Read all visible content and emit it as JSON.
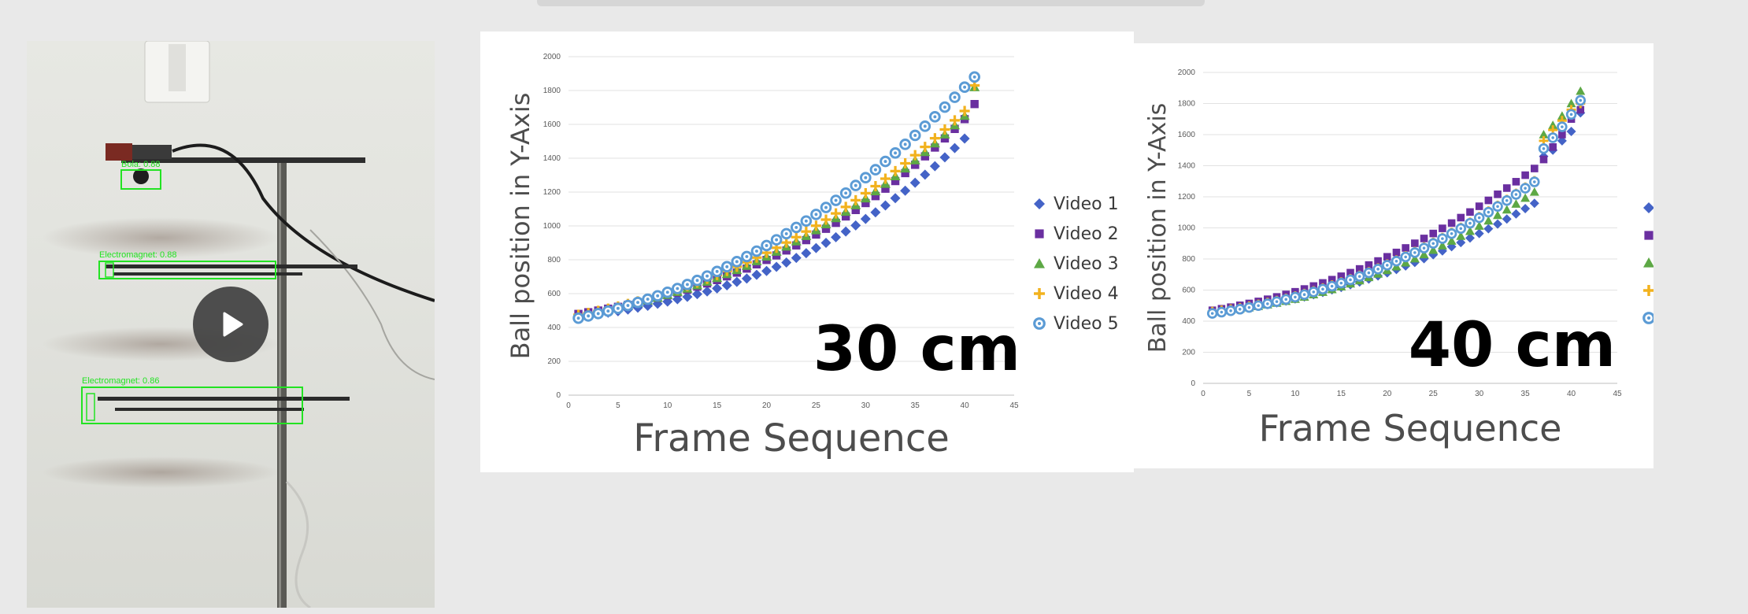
{
  "video": {
    "detections": [
      "Bola: 0.88",
      "Electromagnet: 0.88",
      "Electromagnet: 0.86"
    ],
    "colors": {
      "box": "#22e322",
      "play_bg": "#404040"
    }
  },
  "legend_entries": [
    "Video 1",
    "Video 2",
    "Video 3",
    "Video 4",
    "Video 5"
  ],
  "colors": {
    "video1": "#4463c7",
    "video2": "#6a2fa0",
    "video3": "#5da845",
    "video4": "#f2b21e",
    "video5": "#5b9bd5"
  },
  "chart_data": [
    {
      "type": "scatter",
      "label": "30 cm",
      "xlabel": "Frame Sequence",
      "ylabel": "Ball position in Y-Axis",
      "xlim": [
        0,
        45
      ],
      "ylim": [
        0,
        2000
      ],
      "xticks": [
        0,
        5,
        10,
        15,
        20,
        25,
        30,
        35,
        40,
        45
      ],
      "yticks": [
        0,
        200,
        400,
        600,
        800,
        1000,
        1200,
        1400,
        1600,
        1800,
        2000
      ],
      "grid": "horizontal",
      "legend": "right",
      "series": [
        {
          "name": "Video 1",
          "marker": "diamond",
          "x": [
            1,
            2,
            3,
            4,
            5,
            6,
            7,
            8,
            9,
            10,
            11,
            12,
            13,
            14,
            15,
            16,
            17,
            18,
            19,
            20,
            21,
            22,
            23,
            24,
            25,
            26,
            27,
            28,
            29,
            30,
            31,
            32,
            33,
            34,
            35,
            36,
            37,
            38,
            39,
            40
          ],
          "y": [
            460,
            470,
            478,
            487,
            496,
            506,
            517,
            528,
            540,
            553,
            567,
            581,
            597,
            613,
            631,
            649,
            669,
            689,
            711,
            734,
            758,
            784,
            811,
            839,
            869,
            900,
            933,
            967,
            1003,
            1041,
            1080,
            1121,
            1164,
            1208,
            1255,
            1303,
            1353,
            1405,
            1460,
            1516
          ]
        },
        {
          "name": "Video 2",
          "marker": "square",
          "x": [
            1,
            2,
            3,
            4,
            5,
            6,
            7,
            8,
            9,
            10,
            11,
            12,
            13,
            14,
            15,
            16,
            17,
            18,
            19,
            20,
            21,
            22,
            23,
            24,
            25,
            26,
            27,
            28,
            29,
            30,
            31,
            32,
            33,
            34,
            35,
            36,
            37,
            38,
            39,
            40,
            41
          ],
          "y": [
            480,
            490,
            500,
            511,
            522,
            534,
            547,
            560,
            575,
            590,
            606,
            623,
            641,
            660,
            680,
            702,
            724,
            748,
            773,
            799,
            826,
            855,
            885,
            916,
            949,
            983,
            1018,
            1056,
            1094,
            1135,
            1176,
            1220,
            1265,
            1312,
            1361,
            1411,
            1463,
            1517,
            1573,
            1631,
            1720
          ]
        },
        {
          "name": "Video 3",
          "marker": "triangle",
          "x": [
            1,
            2,
            3,
            4,
            5,
            6,
            7,
            8,
            9,
            10,
            11,
            12,
            13,
            14,
            15,
            16,
            17,
            18,
            19,
            20,
            21,
            22,
            23,
            24,
            25,
            26,
            27,
            28,
            29,
            30,
            31,
            32,
            33,
            34,
            35,
            36,
            37,
            38,
            39,
            40,
            41
          ],
          "y": [
            470,
            481,
            492,
            504,
            517,
            531,
            545,
            560,
            576,
            593,
            611,
            630,
            650,
            671,
            693,
            716,
            740,
            765,
            792,
            819,
            848,
            878,
            909,
            941,
            975,
            1010,
            1046,
            1084,
            1123,
            1163,
            1205,
            1249,
            1294,
            1340,
            1388,
            1437,
            1488,
            1541,
            1595,
            1651,
            1820
          ]
        },
        {
          "name": "Video 4",
          "marker": "plus",
          "x": [
            1,
            2,
            3,
            4,
            5,
            6,
            7,
            8,
            9,
            10,
            11,
            12,
            13,
            14,
            15,
            16,
            17,
            18,
            19,
            20,
            21,
            22,
            23,
            24,
            25,
            26,
            27,
            28,
            29,
            30,
            31,
            32,
            33,
            34,
            35,
            36,
            37,
            38,
            39,
            40,
            41
          ],
          "y": [
            475,
            486,
            498,
            511,
            524,
            539,
            554,
            570,
            587,
            605,
            624,
            644,
            665,
            687,
            710,
            734,
            759,
            785,
            813,
            841,
            871,
            902,
            934,
            967,
            1001,
            1037,
            1074,
            1112,
            1152,
            1193,
            1235,
            1279,
            1324,
            1370,
            1418,
            1467,
            1518,
            1570,
            1624,
            1679,
            1830
          ]
        },
        {
          "name": "Video 5",
          "marker": "circle",
          "x": [
            1,
            2,
            3,
            4,
            5,
            6,
            7,
            8,
            9,
            10,
            11,
            12,
            13,
            14,
            15,
            16,
            17,
            18,
            19,
            20,
            21,
            22,
            23,
            24,
            25,
            26,
            27,
            28,
            29,
            30,
            31,
            32,
            33,
            34,
            35,
            36,
            37,
            38,
            39,
            40,
            41
          ],
          "y": [
            455,
            468,
            482,
            497,
            513,
            530,
            548,
            567,
            587,
            608,
            630,
            654,
            678,
            704,
            731,
            759,
            789,
            819,
            851,
            884,
            918,
            954,
            991,
            1029,
            1068,
            1109,
            1151,
            1194,
            1239,
            1285,
            1332,
            1381,
            1431,
            1482,
            1535,
            1589,
            1645,
            1702,
            1760,
            1820,
            1880
          ]
        }
      ]
    },
    {
      "type": "scatter",
      "label": "40 cm",
      "xlabel": "Frame Sequence",
      "ylabel": "Ball position in Y-Axis",
      "xlim": [
        0,
        45
      ],
      "ylim": [
        0,
        2000
      ],
      "xticks": [
        0,
        5,
        10,
        15,
        20,
        25,
        30,
        35,
        40,
        45
      ],
      "yticks": [
        0,
        200,
        400,
        600,
        800,
        1000,
        1200,
        1400,
        1600,
        1800,
        2000
      ],
      "grid": "horizontal",
      "legend": "right",
      "series": [
        {
          "name": "Video 1",
          "marker": "diamond",
          "x": [
            1,
            2,
            3,
            4,
            5,
            6,
            7,
            8,
            9,
            10,
            11,
            12,
            13,
            14,
            15,
            16,
            17,
            18,
            19,
            20,
            21,
            22,
            23,
            24,
            25,
            26,
            27,
            28,
            29,
            30,
            31,
            32,
            33,
            34,
            35,
            36,
            37,
            38,
            39,
            40,
            41
          ],
          "y": [
            455,
            462,
            470,
            478,
            487,
            497,
            507,
            518,
            530,
            543,
            556,
            570,
            585,
            601,
            617,
            634,
            652,
            671,
            691,
            711,
            732,
            755,
            778,
            802,
            827,
            852,
            879,
            906,
            935,
            964,
            994,
            1025,
            1057,
            1090,
            1124,
            1158,
            1460,
            1500,
            1560,
            1620,
            1740
          ]
        },
        {
          "name": "Video 2",
          "marker": "square",
          "x": [
            1,
            2,
            3,
            4,
            5,
            6,
            7,
            8,
            9,
            10,
            11,
            12,
            13,
            14,
            15,
            16,
            17,
            18,
            19,
            20,
            21,
            22,
            23,
            24,
            25,
            26,
            27,
            28,
            29,
            30,
            31,
            32,
            33,
            34,
            35,
            36,
            37,
            38,
            39,
            40,
            41
          ],
          "y": [
            470,
            480,
            490,
            502,
            514,
            527,
            541,
            556,
            572,
            589,
            607,
            626,
            646,
            667,
            689,
            712,
            736,
            761,
            787,
            814,
            842,
            871,
            901,
            932,
            964,
            997,
            1031,
            1066,
            1102,
            1139,
            1177,
            1216,
            1256,
            1297,
            1339,
            1382,
            1440,
            1520,
            1600,
            1700,
            1760
          ]
        },
        {
          "name": "Video 3",
          "marker": "triangle",
          "x": [
            1,
            2,
            3,
            4,
            5,
            6,
            7,
            8,
            9,
            10,
            11,
            12,
            13,
            14,
            15,
            16,
            17,
            18,
            19,
            20,
            21,
            22,
            23,
            24,
            25,
            26,
            27,
            28,
            29,
            30,
            31,
            32,
            33,
            34,
            35,
            36,
            37,
            38,
            39,
            40,
            41
          ],
          "y": [
            460,
            466,
            472,
            479,
            487,
            496,
            506,
            517,
            529,
            542,
            556,
            571,
            587,
            604,
            622,
            641,
            661,
            682,
            704,
            727,
            751,
            776,
            802,
            829,
            857,
            886,
            916,
            947,
            979,
            1012,
            1046,
            1081,
            1117,
            1154,
            1192,
            1231,
            1600,
            1660,
            1720,
            1800,
            1880
          ]
        },
        {
          "name": "Video 4",
          "marker": "plus",
          "x": [
            1,
            2,
            3,
            4,
            5,
            6,
            7,
            8,
            9,
            10,
            11,
            12,
            13,
            14,
            15,
            16,
            17,
            18,
            19,
            20,
            21,
            22,
            23,
            24,
            25,
            26,
            27,
            28,
            29,
            30,
            31,
            32,
            33,
            34,
            35,
            36,
            37,
            38,
            39,
            40,
            41
          ],
          "y": [
            462,
            470,
            478,
            487,
            497,
            508,
            520,
            533,
            547,
            562,
            578,
            595,
            613,
            632,
            652,
            673,
            695,
            718,
            742,
            767,
            793,
            820,
            848,
            877,
            907,
            938,
            970,
            1003,
            1037,
            1072,
            1108,
            1145,
            1183,
            1222,
            1262,
            1303,
            1560,
            1630,
            1690,
            1760,
            1800
          ]
        },
        {
          "name": "Video 5",
          "marker": "circle",
          "x": [
            1,
            2,
            3,
            4,
            5,
            6,
            7,
            8,
            9,
            10,
            11,
            12,
            13,
            14,
            15,
            16,
            17,
            18,
            19,
            20,
            21,
            22,
            23,
            24,
            25,
            26,
            27,
            28,
            29,
            30,
            31,
            32,
            33,
            34,
            35,
            36,
            37,
            38,
            39,
            40,
            41
          ],
          "y": [
            450,
            458,
            467,
            477,
            488,
            500,
            512,
            526,
            540,
            555,
            571,
            588,
            606,
            625,
            645,
            666,
            688,
            711,
            735,
            760,
            786,
            813,
            841,
            870,
            900,
            931,
            963,
            996,
            1030,
            1065,
            1101,
            1138,
            1176,
            1215,
            1255,
            1296,
            1510,
            1580,
            1650,
            1730,
            1820
          ]
        }
      ]
    }
  ]
}
